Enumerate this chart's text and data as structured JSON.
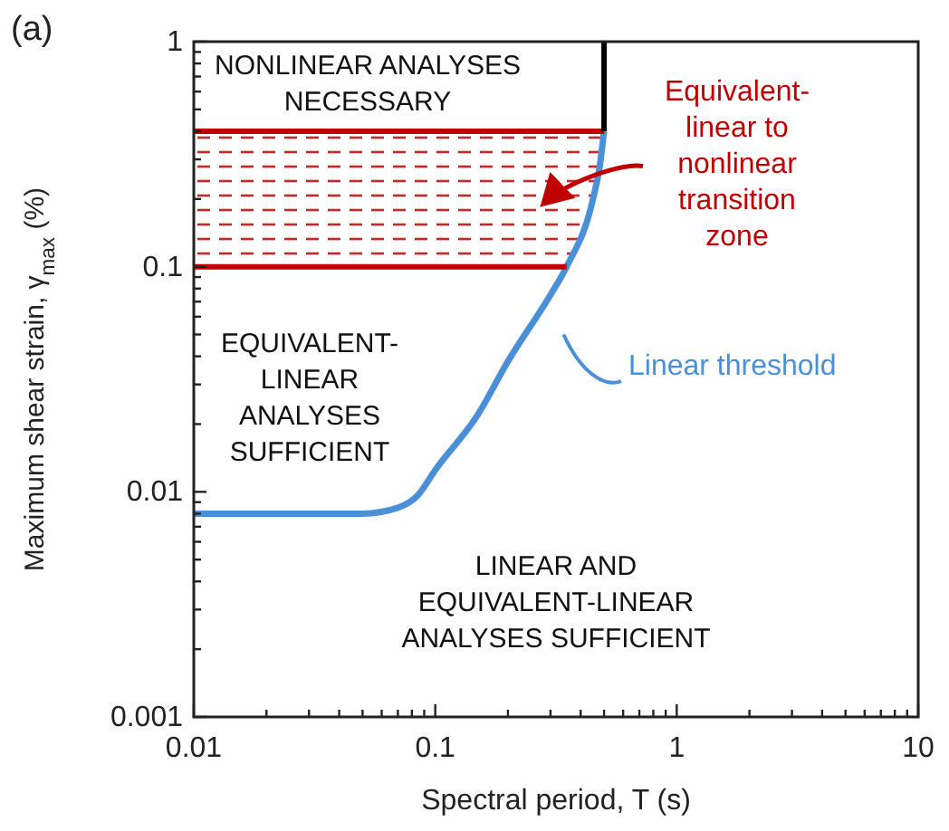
{
  "chart_data": {
    "type": "line",
    "xlabel": "Spectral period, T (s)",
    "ylabel": "Maximum shear strain, γ$_{max}$ (%)",
    "log": "xy",
    "xlim": [
      0.01,
      10
    ],
    "ylim": [
      0.001,
      1
    ],
    "xticks": [
      0.01,
      {
        "value": 0.02,
        "label": null
      },
      {
        "value": 0.03,
        "label": null
      },
      {
        "value": 0.04,
        "label": null
      },
      {
        "value": 0.05,
        "label": null
      },
      {
        "value": 0.06,
        "label": null
      },
      {
        "value": 0.07,
        "label": null
      },
      {
        "value": 0.08,
        "label": null
      },
      {
        "value": 0.09,
        "label": null
      },
      0.1,
      {
        "value": 0.2,
        "label": null
      },
      {
        "value": 0.3,
        "label": null
      },
      {
        "value": 0.4,
        "label": null
      },
      {
        "value": 0.5,
        "label": null
      },
      {
        "value": 0.6,
        "label": null
      },
      {
        "value": 0.7,
        "label": null
      },
      {
        "value": 0.8,
        "label": null
      },
      {
        "value": 0.9,
        "label": null
      },
      1,
      {
        "value": 2,
        "label": null
      },
      {
        "value": 3,
        "label": null
      },
      {
        "value": 4,
        "label": null
      },
      {
        "value": 5,
        "label": null
      },
      {
        "value": 6,
        "label": null
      },
      {
        "value": 7,
        "label": null
      },
      {
        "value": 8,
        "label": null
      },
      {
        "value": 9,
        "label": null
      },
      10
    ],
    "yticks": [
      0.001,
      {
        "value": 0.002,
        "label": null
      },
      {
        "value": 0.003,
        "label": null
      },
      {
        "value": 0.004,
        "label": null
      },
      {
        "value": 0.005,
        "label": null
      },
      {
        "value": 0.006,
        "label": null
      },
      {
        "value": 0.007,
        "label": null
      },
      {
        "value": 0.008,
        "label": null
      },
      {
        "value": 0.009,
        "label": null
      },
      0.01,
      {
        "value": 0.02,
        "label": null
      },
      {
        "value": 0.03,
        "label": null
      },
      {
        "value": 0.04,
        "label": null
      },
      {
        "value": 0.05,
        "label": null
      },
      {
        "value": 0.06,
        "label": null
      },
      {
        "value": 0.07,
        "label": null
      },
      {
        "value": 0.08,
        "label": null
      },
      {
        "value": 0.09,
        "label": null
      },
      0.1,
      {
        "value": 0.2,
        "label": null
      },
      {
        "value": 0.3,
        "label": null
      },
      {
        "value": 0.4,
        "label": null
      },
      {
        "value": 0.5,
        "label": null
      },
      {
        "value": 0.6,
        "label": null
      },
      {
        "value": 0.7,
        "label": null
      },
      {
        "value": 0.8,
        "label": null
      },
      {
        "value": 0.9,
        "label": null
      },
      1
    ],
    "series": [
      {
        "name": "Linear threshold",
        "color": "#4a90d9",
        "x": [
          0.01,
          0.05,
          0.07,
          0.085,
          0.1,
          0.15,
          0.2,
          0.3,
          0.35,
          0.45,
          0.48,
          0.5
        ],
        "values": [
          0.008,
          0.008,
          0.0085,
          0.0097,
          0.0125,
          0.022,
          0.038,
          0.075,
          0.1,
          0.2,
          0.28,
          0.4
        ]
      },
      {
        "color": "#c00000",
        "x": [
          0.01,
          0.5
        ],
        "values": [
          0.4,
          0.4
        ]
      },
      {
        "color": "#c00000",
        "x": [
          0.01,
          0.35
        ],
        "values": [
          0.1,
          0.1
        ]
      },
      {
        "color": "#000000",
        "x": [
          0.5,
          0.5
        ],
        "values": [
          0.4,
          1
        ]
      }
    ],
    "bands": [
      {
        "axis": "y",
        "from": 0.1,
        "to": 0.4,
        "label": "Equivalent-\nlinear to\nnonlinear\ntransition\nzone",
        "color": "#c00000"
      }
    ],
    "annotations": [
      "(a)",
      "NONLINEAR ANALYSES\nNECESSARY",
      "EQUIVALENT-\nLINEAR\nANALYSES\nSUFFICIENT",
      "LINEAR AND\nEQUIVALENT-LINEAR\nANALYSES SUFFICIENT"
    ]
  }
}
